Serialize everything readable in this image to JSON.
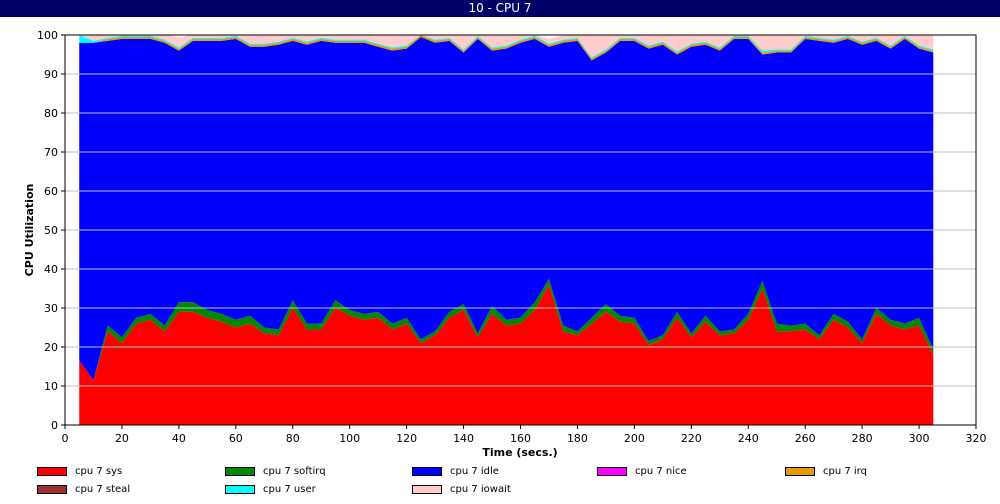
{
  "window": {
    "title": "10 - CPU 7"
  },
  "chart_data": {
    "type": "area",
    "stacked": true,
    "xlabel": "Time (secs.)",
    "ylabel": "CPU Utilization",
    "xlim": [
      0,
      320
    ],
    "ylim": [
      0,
      100
    ],
    "xticks": [
      0,
      20,
      40,
      60,
      80,
      100,
      120,
      140,
      160,
      180,
      200,
      220,
      240,
      260,
      280,
      300,
      320
    ],
    "yticks": [
      0,
      10,
      20,
      30,
      40,
      50,
      60,
      70,
      80,
      90,
      100
    ],
    "grid": "horizontal",
    "legend_position": "bottom",
    "x": [
      5,
      10,
      15,
      20,
      25,
      30,
      35,
      40,
      45,
      50,
      55,
      60,
      65,
      70,
      75,
      80,
      85,
      90,
      95,
      100,
      105,
      110,
      115,
      120,
      125,
      130,
      135,
      140,
      145,
      150,
      155,
      160,
      165,
      170,
      175,
      180,
      185,
      190,
      195,
      200,
      205,
      210,
      215,
      220,
      225,
      230,
      235,
      240,
      245,
      250,
      255,
      260,
      265,
      270,
      275,
      280,
      285,
      290,
      295,
      300,
      305
    ],
    "series": [
      {
        "name": "cpu 7 sys",
        "color": "#ff0000",
        "values": [
          16.5,
          11.5,
          24,
          21,
          26,
          27,
          24,
          29,
          29,
          27.5,
          26.5,
          25,
          26,
          23.5,
          23,
          30,
          24.5,
          24.5,
          30,
          28,
          27,
          27.5,
          24.5,
          26,
          21,
          23,
          27.5,
          29.5,
          22.5,
          28.5,
          25.5,
          26,
          29.5,
          36,
          24,
          23,
          26,
          29,
          26.5,
          26,
          20.5,
          22,
          27.5,
          22.5,
          26.5,
          23,
          23.5,
          27,
          35,
          24,
          24,
          24.5,
          22,
          27,
          25,
          21,
          28.5,
          25.5,
          24.5,
          25.5,
          18
        ]
      },
      {
        "name": "cpu 7 softirq",
        "color": "#008800",
        "values": [
          0,
          0,
          1.5,
          1.5,
          1.5,
          1.5,
          1.5,
          2.5,
          2.5,
          2,
          2,
          2,
          2,
          1.5,
          1.5,
          2,
          1.5,
          1.5,
          2,
          1.5,
          1.5,
          1.5,
          1.5,
          1.5,
          1,
          1,
          1.5,
          1.5,
          1,
          2,
          1.5,
          1.5,
          2,
          1.5,
          1.5,
          1,
          1.5,
          2,
          1.5,
          1.5,
          1,
          1,
          1.5,
          1,
          1.5,
          1,
          1,
          1.5,
          2,
          2,
          1.5,
          1.5,
          1,
          1.5,
          1.5,
          1,
          1.5,
          1.5,
          1.5,
          2,
          1.5
        ]
      },
      {
        "name": "cpu 7 idle",
        "color": "#0000ff",
        "values": [
          81.5,
          86.5,
          73,
          76.5,
          71.5,
          70.5,
          72.5,
          64.5,
          67,
          69,
          70,
          72,
          69,
          72,
          73,
          66.5,
          71.5,
          72.5,
          66,
          68.5,
          69.5,
          68,
          70,
          69,
          77.5,
          74,
          69.5,
          64.5,
          75.5,
          65.5,
          69.5,
          70.5,
          67.5,
          59.5,
          72.5,
          74.5,
          66,
          64.5,
          70.5,
          71,
          75,
          74.5,
          66,
          73.5,
          69.5,
          72,
          74.5,
          70.5,
          58,
          69.5,
          70,
          73,
          75.5,
          69.5,
          72.5,
          75.5,
          68.5,
          69.5,
          73,
          69,
          76
        ]
      },
      {
        "name": "cpu 7 nice",
        "color": "#ff00ff",
        "values": [
          0,
          0,
          0,
          0,
          0,
          0,
          0,
          0,
          0,
          0,
          0,
          0,
          0,
          0,
          0,
          0,
          0,
          0,
          0,
          0,
          0,
          0,
          0,
          0,
          0,
          0,
          0,
          0,
          0,
          0,
          0,
          0,
          0,
          0,
          0,
          0,
          0,
          0,
          0,
          0,
          0,
          0,
          0,
          0,
          0,
          0,
          0,
          0,
          0,
          0,
          0,
          0,
          0,
          0,
          0,
          0,
          0,
          0,
          0,
          0,
          0
        ]
      },
      {
        "name": "cpu 7 irq",
        "color": "#e69900",
        "values": [
          0,
          0,
          0.5,
          0.5,
          0.5,
          0.5,
          0.5,
          0.5,
          0.5,
          0.5,
          0.5,
          0.5,
          0.5,
          0.5,
          0.5,
          0.5,
          0.5,
          0.5,
          0.5,
          0.5,
          0.5,
          0.5,
          0.5,
          0.5,
          0.5,
          0.5,
          0.5,
          0.5,
          0.5,
          0.5,
          0.5,
          0.5,
          0.5,
          0.5,
          0.5,
          0.5,
          0.5,
          0.5,
          0.5,
          0.5,
          0.5,
          0.5,
          0.5,
          0.5,
          0.5,
          0.5,
          0.5,
          0.5,
          0.5,
          0.5,
          0.5,
          0.5,
          0.5,
          0.5,
          0.5,
          0.5,
          0.5,
          0.5,
          0.5,
          0.5,
          0.5
        ]
      },
      {
        "name": "cpu 7 steal",
        "color": "#a03030",
        "values": [
          0,
          0,
          0,
          0,
          0,
          0,
          0,
          0,
          0,
          0,
          0,
          0,
          0,
          0,
          0,
          0,
          0,
          0,
          0,
          0,
          0,
          0,
          0,
          0,
          0,
          0,
          0,
          0,
          0,
          0,
          0,
          0,
          0,
          0,
          0,
          0,
          0,
          0,
          0,
          0,
          0,
          0,
          0,
          0,
          0,
          0,
          0,
          0,
          0,
          0,
          0,
          0,
          0,
          0,
          0,
          0,
          0,
          0,
          0,
          0,
          0
        ]
      },
      {
        "name": "cpu 7 user",
        "color": "#00ffff",
        "values": [
          2,
          0.5,
          0.3,
          0.3,
          0.3,
          0.3,
          0.3,
          0.3,
          0.3,
          0.3,
          0.3,
          0.3,
          0.3,
          0.3,
          0.3,
          0.3,
          0.3,
          0.3,
          0.3,
          0.3,
          0.3,
          0.3,
          0.3,
          0.3,
          0.3,
          0.3,
          0.3,
          0.3,
          0.3,
          0.3,
          0.3,
          0.3,
          0.3,
          0.3,
          0.3,
          0.3,
          0.3,
          0.3,
          0.3,
          0.3,
          0.3,
          0.3,
          0.3,
          0.3,
          0.3,
          0.3,
          0.3,
          0.3,
          0.5,
          0.3,
          0.3,
          0.3,
          0.3,
          0.3,
          0.3,
          0.3,
          0.3,
          0.3,
          0.3,
          0.3,
          0.3
        ]
      },
      {
        "name": "cpu 7 iowait",
        "color": "#ffcccc",
        "values": [
          0,
          1.5,
          0.7,
          0.2,
          0.2,
          0.2,
          1.2,
          2.7,
          0.7,
          0.7,
          0.7,
          0.2,
          2.2,
          2.2,
          1.7,
          0.7,
          1.7,
          0.7,
          1.2,
          1.2,
          1.2,
          2.2,
          3.2,
          2.7,
          0.2,
          1.2,
          1.2,
          3.7,
          0.2,
          3.2,
          2.7,
          1.2,
          0.2,
          1.2,
          1.2,
          0.7,
          5.7,
          3.7,
          0.7,
          0.7,
          2.7,
          1.7,
          4.2,
          2.2,
          1.7,
          3.2,
          0.2,
          0.2,
          4,
          3.7,
          3.7,
          0.2,
          0.7,
          1.2,
          0.2,
          1.7,
          0.7,
          2.7,
          0.2,
          2.7,
          3.7
        ]
      }
    ]
  }
}
